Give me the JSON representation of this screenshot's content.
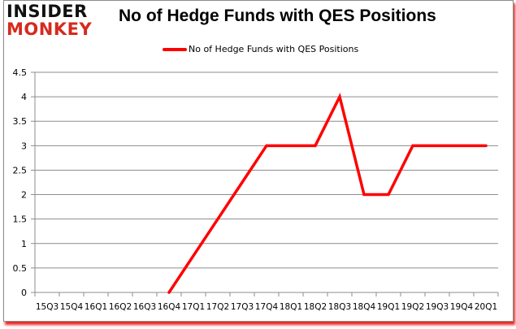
{
  "brand": {
    "line1": "INSIDER",
    "line2": "MONKEY"
  },
  "chart_data": {
    "type": "line",
    "title": "No of Hedge Funds with QES Positions",
    "xlabel": "",
    "ylabel": "",
    "categories": [
      "15Q3",
      "15Q4",
      "16Q1",
      "16Q2",
      "16Q3",
      "16Q4",
      "17Q1",
      "17Q2",
      "17Q3",
      "17Q4",
      "18Q1",
      "18Q2",
      "18Q3",
      "18Q4",
      "19Q1",
      "19Q2",
      "19Q3",
      "19Q4",
      "20Q1"
    ],
    "series": [
      {
        "name": "No of Hedge Funds with QES Positions",
        "color": "#ff0000",
        "values": [
          null,
          null,
          null,
          null,
          null,
          0,
          0.75,
          1.5,
          2.25,
          3,
          3,
          3,
          4,
          2,
          2,
          3,
          3,
          3,
          3
        ]
      }
    ],
    "yticks": [
      "0",
      "0.5",
      "1",
      "1.5",
      "2",
      "2.5",
      "3",
      "3.5",
      "4",
      "4.5"
    ],
    "ylim": [
      0,
      4.5
    ],
    "grid": true,
    "legend_position": "top"
  }
}
